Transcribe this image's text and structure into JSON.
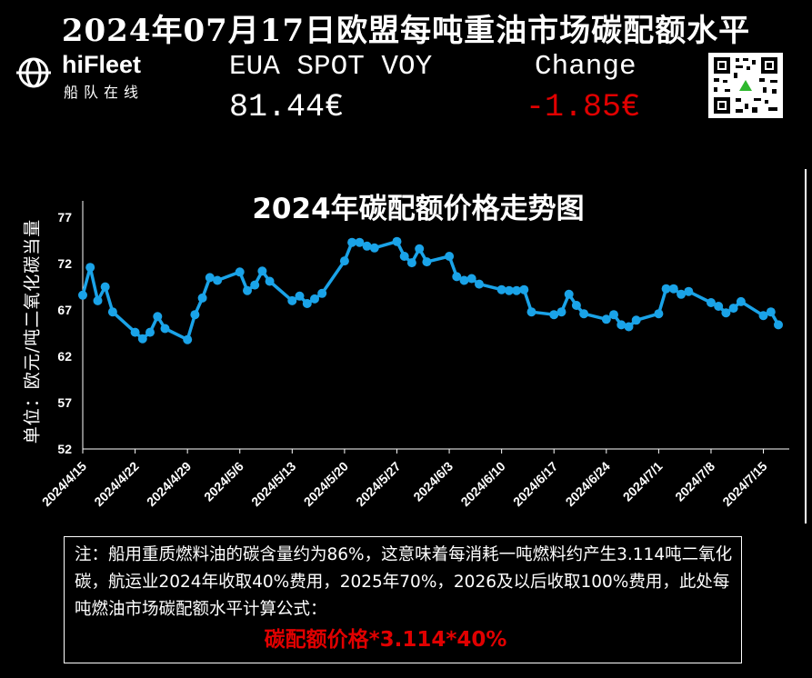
{
  "header": {
    "title": "2024年07月17日欧盟每吨重油市场碳配额水平"
  },
  "logo": {
    "name": "hiFleet",
    "subtitle": "船队在线"
  },
  "ticker": {
    "label": "EUA SPOT VOY",
    "price": "81.44€",
    "change_label": "Change",
    "change_value": "-1.85€",
    "change_color": "#e00000"
  },
  "qr": {
    "icon": "qr-code-icon"
  },
  "chart_data": {
    "type": "line",
    "title": "2024年碳配额价格走势图",
    "ylabel": "单位：欧元/吨二氧化碳当量",
    "ylim": [
      52,
      78
    ],
    "yticks": [
      52,
      57,
      62,
      67,
      72,
      77
    ],
    "xlim": [
      "2024-04-15",
      "2024-07-17"
    ],
    "xticks": [
      "2024/4/15",
      "2024/4/22",
      "2024/4/29",
      "2024/5/6",
      "2024/5/13",
      "2024/5/20",
      "2024/5/27",
      "2024/6/3",
      "2024/6/10",
      "2024/6/17",
      "2024/6/24",
      "2024/7/1",
      "2024/7/8",
      "2024/7/15"
    ],
    "line_color": "#1aa3e8",
    "grid": false,
    "series": [
      {
        "x": [
          "2024-04-15",
          "2024-04-16",
          "2024-04-17",
          "2024-04-18",
          "2024-04-19",
          "2024-04-22",
          "2024-04-23",
          "2024-04-24",
          "2024-04-25",
          "2024-04-26",
          "2024-04-29",
          "2024-04-30",
          "2024-05-01",
          "2024-05-02",
          "2024-05-03",
          "2024-05-06",
          "2024-05-07",
          "2024-05-08",
          "2024-05-09",
          "2024-05-10",
          "2024-05-13",
          "2024-05-14",
          "2024-05-15",
          "2024-05-16",
          "2024-05-17",
          "2024-05-20",
          "2024-05-21",
          "2024-05-22",
          "2024-05-23",
          "2024-05-24",
          "2024-05-27",
          "2024-05-28",
          "2024-05-29",
          "2024-05-30",
          "2024-05-31",
          "2024-06-03",
          "2024-06-04",
          "2024-06-05",
          "2024-06-06",
          "2024-06-07",
          "2024-06-10",
          "2024-06-11",
          "2024-06-12",
          "2024-06-13",
          "2024-06-14",
          "2024-06-17",
          "2024-06-18",
          "2024-06-19",
          "2024-06-20",
          "2024-06-21",
          "2024-06-24",
          "2024-06-25",
          "2024-06-26",
          "2024-06-27",
          "2024-06-28",
          "2024-07-01",
          "2024-07-02",
          "2024-07-03",
          "2024-07-04",
          "2024-07-05",
          "2024-07-08",
          "2024-07-09",
          "2024-07-10",
          "2024-07-11",
          "2024-07-12",
          "2024-07-15",
          "2024-07-16",
          "2024-07-17"
        ],
        "values": [
          68.6,
          71.6,
          68.0,
          69.5,
          66.8,
          64.6,
          63.9,
          64.6,
          66.3,
          65.0,
          63.8,
          66.5,
          68.3,
          70.5,
          70.2,
          71.1,
          69.1,
          69.7,
          71.2,
          70.1,
          68.0,
          68.5,
          67.7,
          68.2,
          68.8,
          72.3,
          74.3,
          74.3,
          73.9,
          73.7,
          74.4,
          72.8,
          72.1,
          73.6,
          72.2,
          72.8,
          70.6,
          70.2,
          70.4,
          69.8,
          69.2,
          69.1,
          69.1,
          69.2,
          66.8,
          66.5,
          66.8,
          68.7,
          67.5,
          66.6,
          66.0,
          66.5,
          65.4,
          65.2,
          65.9,
          66.6,
          69.3,
          69.3,
          68.7,
          69.0,
          67.8,
          67.4,
          66.7,
          67.2,
          67.9,
          66.4,
          66.8,
          65.4
        ]
      }
    ]
  },
  "note": {
    "text": "注：船用重质燃料油的碳含量约为86%，这意味着每消耗一吨燃料约产生3.114吨二氧化碳，航运业2024年收取40%费用，2025年70%，2026及以后收取100%费用，此处每吨燃油市场碳配额水平计算公式：",
    "formula": "碳配额价格*3.114*40%",
    "formula_color": "#e00000"
  }
}
